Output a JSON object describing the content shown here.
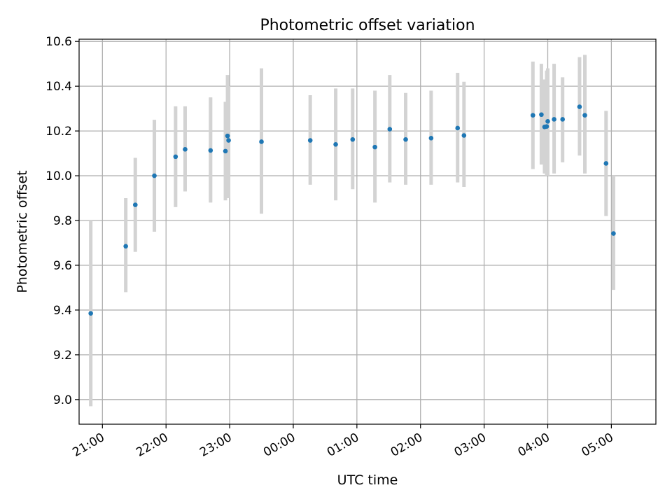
{
  "chart_data": {
    "type": "scatter",
    "title": "Photometric offset variation",
    "xlabel": "UTC time",
    "ylabel": "Photometric offset",
    "grid": true,
    "xlim": [
      "20:38",
      "05:42"
    ],
    "ylim": [
      8.89,
      10.61
    ],
    "x_ticks": [
      "21:00",
      "22:00",
      "23:00",
      "00:00",
      "01:00",
      "02:00",
      "03:00",
      "04:00",
      "05:00"
    ],
    "y_ticks": [
      "9.0",
      "9.2",
      "9.4",
      "9.6",
      "9.8",
      "10.0",
      "10.2",
      "10.4",
      "10.6"
    ],
    "colors": {
      "points": "#1f77b4",
      "errorbars": "#d3d3d3",
      "grid": "#b0b0b0"
    },
    "points": [
      {
        "x": "20:49",
        "y": 9.385,
        "yerr": [
          8.97,
          9.8
        ]
      },
      {
        "x": "21:22",
        "y": 9.685,
        "yerr": [
          9.48,
          9.9
        ]
      },
      {
        "x": "21:31",
        "y": 9.87,
        "yerr": [
          9.66,
          10.08
        ]
      },
      {
        "x": "21:49",
        "y": 10.0,
        "yerr": [
          9.75,
          10.25
        ]
      },
      {
        "x": "22:09",
        "y": 10.085,
        "yerr": [
          9.86,
          10.31
        ]
      },
      {
        "x": "22:18",
        "y": 10.118,
        "yerr": [
          9.93,
          10.31
        ]
      },
      {
        "x": "22:42",
        "y": 10.113,
        "yerr": [
          9.88,
          10.35
        ]
      },
      {
        "x": "22:56",
        "y": 10.11,
        "yerr": [
          9.89,
          10.33
        ]
      },
      {
        "x": "22:58",
        "y": 10.178,
        "yerr": [
          9.9,
          10.45
        ]
      },
      {
        "x": "22:59",
        "y": 10.158,
        "yerr": [
          9.9,
          10.4
        ]
      },
      {
        "x": "23:30",
        "y": 10.152,
        "yerr": [
          9.83,
          10.48
        ]
      },
      {
        "x": "00:16",
        "y": 10.158,
        "yerr": [
          9.96,
          10.36
        ]
      },
      {
        "x": "00:40",
        "y": 10.14,
        "yerr": [
          9.89,
          10.39
        ]
      },
      {
        "x": "00:56",
        "y": 10.162,
        "yerr": [
          9.94,
          10.39
        ]
      },
      {
        "x": "01:17",
        "y": 10.128,
        "yerr": [
          9.88,
          10.38
        ]
      },
      {
        "x": "01:31",
        "y": 10.208,
        "yerr": [
          9.97,
          10.45
        ]
      },
      {
        "x": "01:46",
        "y": 10.162,
        "yerr": [
          9.96,
          10.37
        ]
      },
      {
        "x": "02:10",
        "y": 10.168,
        "yerr": [
          9.96,
          10.38
        ]
      },
      {
        "x": "02:35",
        "y": 10.213,
        "yerr": [
          9.97,
          10.46
        ]
      },
      {
        "x": "02:41",
        "y": 10.18,
        "yerr": [
          9.95,
          10.42
        ]
      },
      {
        "x": "03:46",
        "y": 10.27,
        "yerr": [
          10.03,
          10.51
        ]
      },
      {
        "x": "03:54",
        "y": 10.273,
        "yerr": [
          10.05,
          10.5
        ]
      },
      {
        "x": "03:57",
        "y": 10.218,
        "yerr": [
          10.01,
          10.43
        ]
      },
      {
        "x": "03:59",
        "y": 10.22,
        "yerr": [
          10.0,
          10.47
        ]
      },
      {
        "x": "04:00",
        "y": 10.243,
        "yerr": [
          10.0,
          10.48
        ]
      },
      {
        "x": "04:06",
        "y": 10.252,
        "yerr": [
          10.01,
          10.5
        ]
      },
      {
        "x": "04:14",
        "y": 10.252,
        "yerr": [
          10.06,
          10.44
        ]
      },
      {
        "x": "04:30",
        "y": 10.308,
        "yerr": [
          10.09,
          10.53
        ]
      },
      {
        "x": "04:35",
        "y": 10.27,
        "yerr": [
          10.01,
          10.54
        ]
      },
      {
        "x": "04:55",
        "y": 10.055,
        "yerr": [
          9.82,
          10.29
        ]
      },
      {
        "x": "05:02",
        "y": 9.742,
        "yerr": [
          9.49,
          10.0
        ]
      }
    ]
  }
}
